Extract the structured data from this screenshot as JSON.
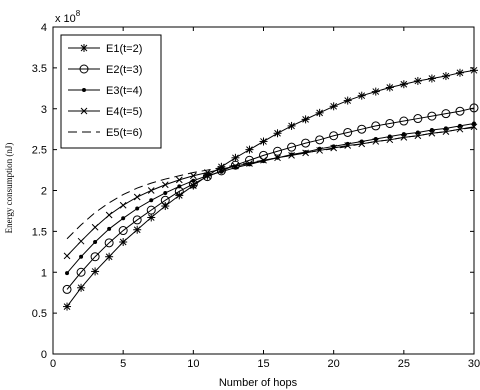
{
  "chart_data": {
    "type": "line",
    "xlabel": "Number of hops",
    "ylabel": "Energy consumption (nJ)",
    "y_multiplier_label": "x 10",
    "y_multiplier_exponent": "8",
    "xlim": [
      0,
      30
    ],
    "ylim": [
      0,
      4
    ],
    "x_ticks": [
      0,
      5,
      10,
      15,
      20,
      25,
      30
    ],
    "y_ticks": [
      0,
      0.5,
      1,
      1.5,
      2,
      2.5,
      3,
      3.5,
      4
    ],
    "grid": false,
    "legend_position": "top-left",
    "x": [
      1,
      2,
      3,
      4,
      5,
      6,
      7,
      8,
      9,
      10,
      11,
      12,
      13,
      14,
      15,
      16,
      17,
      18,
      19,
      20,
      21,
      22,
      23,
      24,
      25,
      26,
      27,
      28,
      29,
      30
    ],
    "series": [
      {
        "name": "E1(t=2)",
        "marker": "star",
        "values": [
          0.58,
          0.81,
          1.01,
          1.19,
          1.37,
          1.52,
          1.67,
          1.81,
          1.94,
          2.06,
          2.18,
          2.29,
          2.4,
          2.5,
          2.6,
          2.7,
          2.79,
          2.87,
          2.95,
          3.03,
          3.1,
          3.16,
          3.21,
          3.26,
          3.3,
          3.34,
          3.37,
          3.4,
          3.44,
          3.47
        ]
      },
      {
        "name": "E2(t=3)",
        "marker": "circle",
        "values": [
          0.79,
          1.0,
          1.19,
          1.36,
          1.51,
          1.64,
          1.76,
          1.88,
          1.99,
          2.08,
          2.17,
          2.24,
          2.31,
          2.37,
          2.43,
          2.48,
          2.53,
          2.58,
          2.62,
          2.67,
          2.71,
          2.75,
          2.79,
          2.82,
          2.85,
          2.88,
          2.91,
          2.94,
          2.97,
          3.01
        ]
      },
      {
        "name": "E3(t=4)",
        "marker": "dot",
        "values": [
          0.99,
          1.19,
          1.37,
          1.53,
          1.66,
          1.78,
          1.88,
          1.97,
          2.05,
          2.12,
          2.18,
          2.23,
          2.28,
          2.32,
          2.36,
          2.4,
          2.44,
          2.47,
          2.51,
          2.54,
          2.57,
          2.6,
          2.63,
          2.66,
          2.69,
          2.71,
          2.74,
          2.76,
          2.79,
          2.82
        ]
      },
      {
        "name": "E4(t=5)",
        "marker": "x",
        "values": [
          1.2,
          1.38,
          1.55,
          1.7,
          1.82,
          1.92,
          2.0,
          2.07,
          2.13,
          2.18,
          2.22,
          2.26,
          2.3,
          2.33,
          2.37,
          2.4,
          2.43,
          2.46,
          2.49,
          2.52,
          2.55,
          2.57,
          2.6,
          2.62,
          2.65,
          2.67,
          2.7,
          2.72,
          2.75,
          2.78
        ]
      },
      {
        "name": "E5(t=6)",
        "marker": "dash",
        "values": [
          1.41,
          1.58,
          1.73,
          1.85,
          1.95,
          2.03,
          2.09,
          2.14,
          2.18,
          2.22,
          2.25,
          2.28,
          2.31,
          2.34,
          2.37,
          2.4,
          2.43,
          2.46,
          2.49,
          2.51,
          2.54,
          2.57,
          2.6,
          2.62,
          2.65,
          2.67,
          2.7,
          2.72,
          2.75,
          2.77
        ]
      }
    ]
  }
}
